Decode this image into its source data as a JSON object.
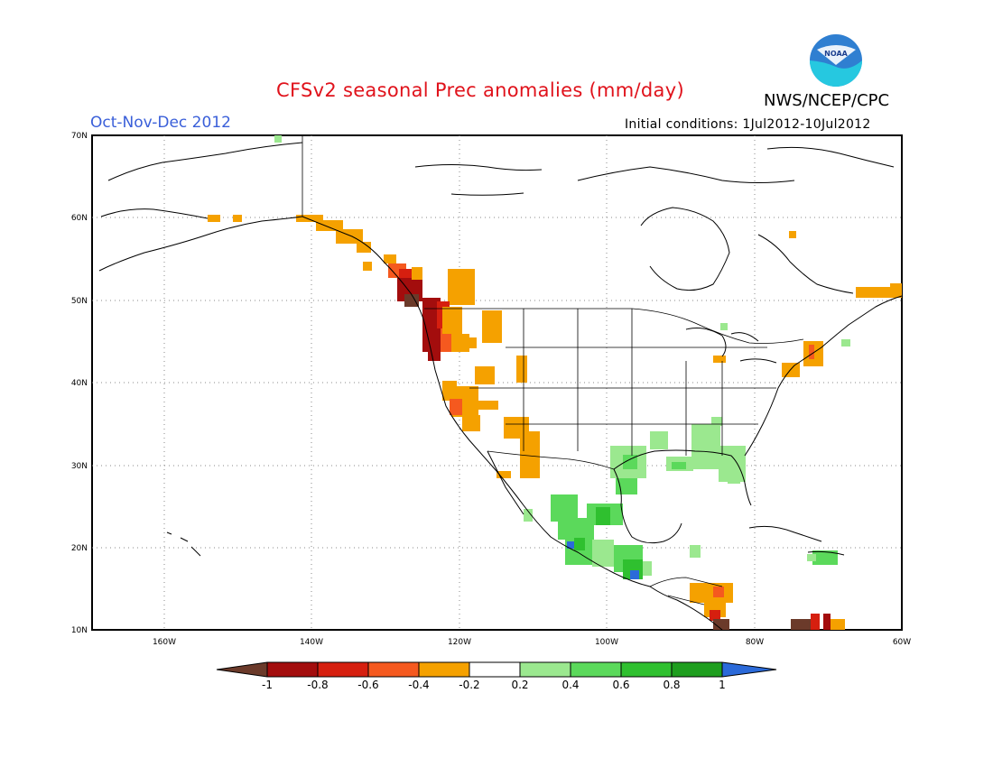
{
  "title": "CFSv2 seasonal Prec anomalies (mm/day)",
  "agency": "NWS/NCEP/CPC",
  "logo_text": "NOAA",
  "period": "Oct-Nov-Dec 2012",
  "initial_conditions": "Initial conditions: 1Jul2012-10Jul2012",
  "map": {
    "lon_range": [
      -172,
      -60
    ],
    "lat_range": [
      10,
      70
    ],
    "gridlines": "dotted every 10 degrees",
    "lat_ticks": [
      "70N",
      "60N",
      "50N",
      "40N",
      "30N",
      "20N",
      "10N"
    ],
    "lon_ticks": [
      "160W",
      "140W",
      "120W",
      "100W",
      "80W",
      "60W"
    ]
  },
  "colors": {
    "c_m10": "#6b3a2a",
    "c_m08": "#a30d0d",
    "c_m06": "#d61f0f",
    "c_m04": "#f5591f",
    "c_m02": "#f5a100",
    "c_p02": "#9be88f",
    "c_p04": "#5bd95b",
    "c_p06": "#2fc02f",
    "c_p08": "#1e9e1e",
    "c_p10": "#2b6ad9"
  },
  "colorbar": {
    "tick_labels": [
      "-1",
      "-0.8",
      "-0.6",
      "-0.4",
      "-0.2",
      "0.2",
      "0.4",
      "0.6",
      "0.8",
      "1"
    ]
  },
  "anomaly_regions": [
    {
      "region": "Pacific Northwest coast",
      "level": "c_m08"
    },
    {
      "region": "Northern California coast",
      "level": "c_m06"
    },
    {
      "region": "Alaska panhandle",
      "level": "c_m02"
    },
    {
      "region": "British Columbia coast",
      "level": "c_m10"
    },
    {
      "region": "Southwest US / Arizona",
      "level": "c_m02"
    },
    {
      "region": "Central California",
      "level": "c_m02"
    },
    {
      "region": "Mexico west coast",
      "level": "c_p04"
    },
    {
      "region": "Jalisco coast",
      "level": "c_p10"
    },
    {
      "region": "Southern Mexico",
      "level": "c_p06"
    },
    {
      "region": "Gulf coast Texas",
      "level": "c_p02"
    },
    {
      "region": "Alabama / Georgia / Florida",
      "level": "c_p02"
    },
    {
      "region": "Hispaniola",
      "level": "c_p04"
    },
    {
      "region": "Central America",
      "level": "c_m02"
    },
    {
      "region": "Nicaragua coast",
      "level": "c_m10"
    },
    {
      "region": "Northern South America",
      "level": "c_m06"
    },
    {
      "region": "New England / Maine",
      "level": "c_m02"
    },
    {
      "region": "Labrador coast",
      "level": "c_m02"
    }
  ]
}
